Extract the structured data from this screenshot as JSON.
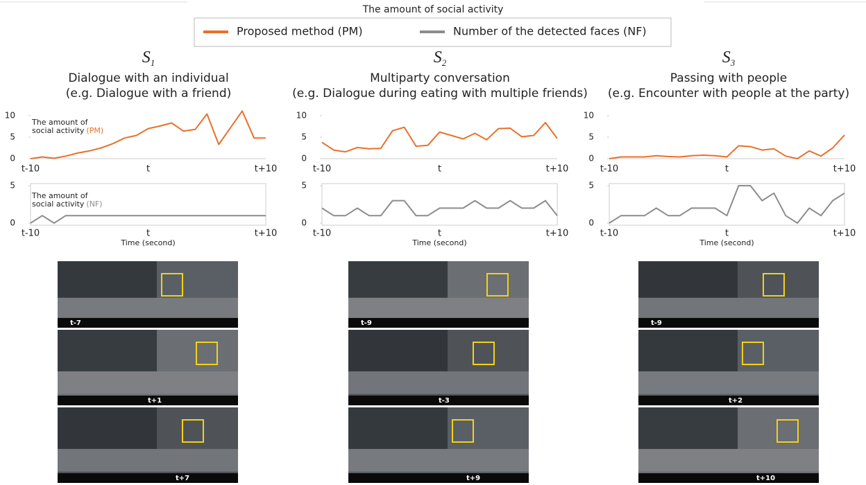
{
  "title": "The amount of social activity",
  "legend": [
    {
      "name": "Proposed method (PM)",
      "color": "#e8702a"
    },
    {
      "name": "Number of the detected faces (NF)",
      "color": "#8c8c8c"
    }
  ],
  "panels": [
    {
      "symbol": "S",
      "subscript": "1",
      "heading": "Dialogue with an individual",
      "example": "(e.g. Dialogue with a friend)",
      "frames": [
        "t-7",
        "t+1",
        "t+7"
      ]
    },
    {
      "symbol": "S",
      "subscript": "2",
      "heading": "Multiparty conversation",
      "example": "(e.g. Dialogue during eating with multiple friends)",
      "frames": [
        "t-9",
        "t-3",
        "t+9"
      ]
    },
    {
      "symbol": "S",
      "subscript": "3",
      "heading": "Passing with people",
      "example": "(e.g. Encounter with people at the party)",
      "frames": [
        "t-9",
        "t+2",
        "t+10"
      ]
    }
  ],
  "chart_data": [
    {
      "type": "line",
      "categories": [
        "t-10",
        null,
        null,
        null,
        null,
        null,
        null,
        null,
        null,
        null,
        "t",
        null,
        null,
        null,
        null,
        null,
        null,
        null,
        null,
        null,
        "t+10"
      ],
      "values": [
        0,
        0.4,
        0.1,
        0.6,
        1.3,
        1.8,
        2.5,
        3.5,
        4.8,
        5.4,
        7,
        7.6,
        8.3,
        6.4,
        6.8,
        10.4,
        3.3,
        7.2,
        11.1,
        4.8,
        4.8
      ],
      "color": "#e8702a",
      "ylim": [
        0,
        12
      ],
      "yticks": [
        0,
        5,
        10
      ],
      "frame": false,
      "annotation": [
        "The amount of",
        "social activity",
        "(PM)"
      ]
    },
    {
      "type": "line",
      "categories": [
        "t-10",
        null,
        null,
        null,
        null,
        null,
        null,
        null,
        null,
        null,
        "t",
        null,
        null,
        null,
        null,
        null,
        null,
        null,
        null,
        null,
        "t+10"
      ],
      "values": [
        0,
        1,
        0,
        1,
        1,
        1,
        1,
        1,
        1,
        1,
        1,
        1,
        1,
        1,
        1,
        1,
        1,
        1,
        1,
        1,
        1
      ],
      "color": "#8c8c8c",
      "ylim": [
        0,
        5
      ],
      "yticks": [
        0,
        5
      ],
      "frame": true,
      "xlabel": "Time (second)",
      "annotation": [
        "The amount of",
        "social activity",
        "(NF)"
      ]
    },
    {
      "type": "line",
      "categories": [
        "t-10",
        null,
        null,
        null,
        null,
        null,
        null,
        null,
        null,
        null,
        "t",
        null,
        null,
        null,
        null,
        null,
        null,
        null,
        null,
        null,
        "t+10"
      ],
      "values": [
        3.8,
        2,
        1.6,
        2.6,
        2.3,
        2.4,
        6.5,
        7.3,
        2.9,
        3.1,
        6.2,
        5.4,
        4.6,
        5.9,
        4.4,
        7,
        7.1,
        5.1,
        5.4,
        8.4,
        4.7
      ],
      "color": "#e8702a",
      "ylim": [
        0,
        12
      ],
      "yticks": [
        0,
        5,
        10
      ],
      "frame": false
    },
    {
      "type": "line",
      "categories": [
        "t-10",
        null,
        null,
        null,
        null,
        null,
        null,
        null,
        null,
        null,
        "t",
        null,
        null,
        null,
        null,
        null,
        null,
        null,
        null,
        null,
        "t+10"
      ],
      "values": [
        2,
        1,
        1,
        2,
        1,
        1,
        3,
        3,
        1,
        1,
        2,
        2,
        2,
        3,
        2,
        2,
        3,
        2,
        2,
        3,
        1
      ],
      "color": "#8c8c8c",
      "ylim": [
        0,
        5
      ],
      "yticks": [
        0,
        5
      ],
      "frame": true,
      "xlabel": "Time (second)"
    },
    {
      "type": "line",
      "categories": [
        "t-10",
        null,
        null,
        null,
        null,
        null,
        null,
        null,
        null,
        null,
        "t",
        null,
        null,
        null,
        null,
        null,
        null,
        null,
        null,
        null,
        "t+10"
      ],
      "values": [
        0,
        0.4,
        0.4,
        0.4,
        0.7,
        0.5,
        0.4,
        0.7,
        0.8,
        0.7,
        0.4,
        3,
        2.8,
        2,
        2.3,
        0.6,
        0,
        1.8,
        0.6,
        2.5,
        5.5
      ],
      "color": "#e8702a",
      "ylim": [
        0,
        12
      ],
      "yticks": [
        0,
        5,
        10
      ],
      "frame": false
    },
    {
      "type": "line",
      "categories": [
        "t-10",
        null,
        null,
        null,
        null,
        null,
        null,
        null,
        null,
        null,
        "t",
        null,
        null,
        null,
        null,
        null,
        null,
        null,
        null,
        null,
        "t+10"
      ],
      "values": [
        0,
        1,
        1,
        1,
        2,
        1,
        1,
        2,
        2,
        2,
        1,
        5,
        5,
        3,
        4,
        1,
        0,
        2,
        1,
        3,
        4
      ],
      "color": "#8c8c8c",
      "ylim": [
        0,
        5
      ],
      "yticks": [
        0,
        5
      ],
      "frame": true,
      "xlabel": "Time (second)"
    }
  ]
}
